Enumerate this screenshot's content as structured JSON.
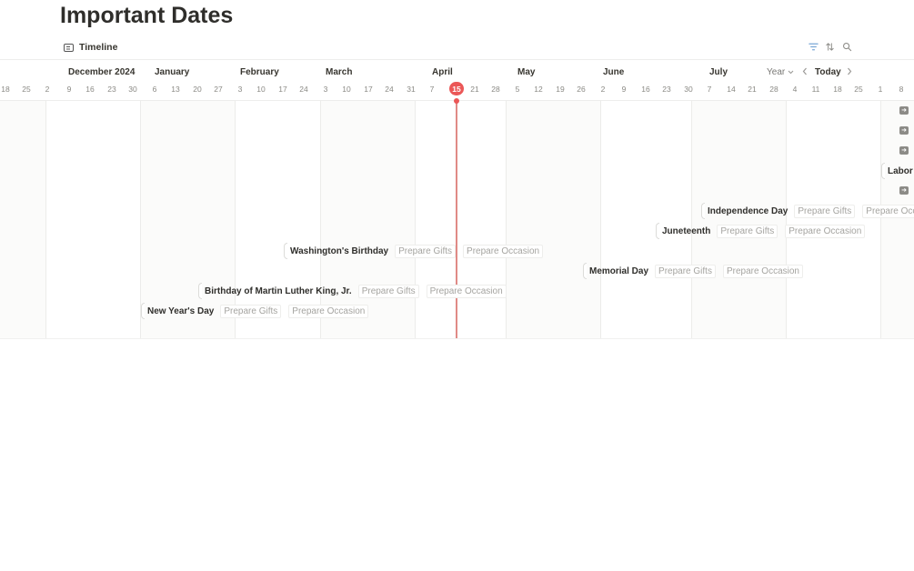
{
  "page": {
    "title": "Important Dates"
  },
  "view": {
    "tab_label": "Timeline",
    "tab_icon": "timeline-view-icon"
  },
  "toolbar": {
    "icons": [
      "filter-icon",
      "sort-icon",
      "search-icon"
    ]
  },
  "timeline": {
    "scale_label": "Year",
    "today_label": "Today",
    "today_day": "15",
    "months": [
      "December 2024",
      "January",
      "February",
      "March",
      "April",
      "May",
      "June",
      "July"
    ],
    "days": [
      "18",
      "25",
      "2",
      "9",
      "16",
      "23",
      "30",
      "6",
      "13",
      "20",
      "27",
      "3",
      "10",
      "17",
      "24",
      "3",
      "10",
      "17",
      "24",
      "31",
      "7",
      "15",
      "21",
      "28",
      "5",
      "12",
      "19",
      "26",
      "2",
      "9",
      "16",
      "23",
      "30",
      "7",
      "14",
      "21",
      "28",
      "4",
      "11",
      "18",
      "25",
      "1",
      "8"
    ],
    "events": [
      {
        "name": "Independence Day",
        "chips": [
          "Prepare Gifts",
          "Prepare Occa"
        ]
      },
      {
        "name": "Juneteenth",
        "chips": [
          "Prepare Gifts",
          "Prepare Occasion"
        ]
      },
      {
        "name": "Washington's Birthday",
        "chips": [
          "Prepare Gifts",
          "Prepare Occasion"
        ]
      },
      {
        "name": "Memorial Day",
        "chips": [
          "Prepare Gifts",
          "Prepare Occasion"
        ]
      },
      {
        "name": "Birthday of Martin Luther King, Jr.",
        "chips": [
          "Prepare Gifts",
          "Prepare Occasion"
        ]
      },
      {
        "name": "New Year's Day",
        "chips": [
          "Prepare Gifts",
          "Prepare Occasion"
        ]
      },
      {
        "name": "Labor D",
        "chips": []
      }
    ],
    "edge_arrow_glyph": "➜"
  }
}
